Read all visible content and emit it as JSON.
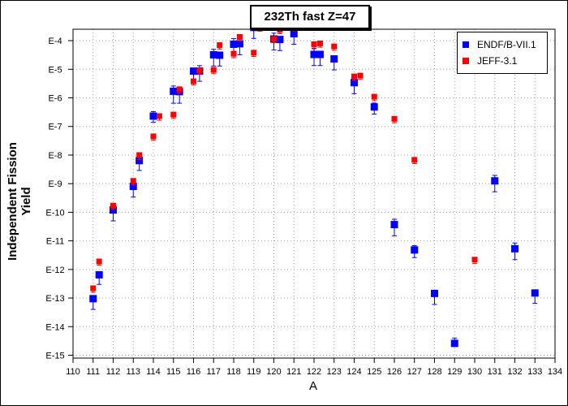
{
  "chart_data": {
    "type": "scatter",
    "title": "232Th fast Z=47",
    "xlabel": "A",
    "ylabel": "Independent Fission Yield",
    "xlim": [
      110,
      134
    ],
    "ylim_exponent": [
      -15.1,
      -3.6
    ],
    "yscale": "log",
    "x_ticks": [
      110,
      111,
      112,
      113,
      114,
      115,
      116,
      117,
      118,
      119,
      120,
      121,
      122,
      123,
      124,
      125,
      126,
      127,
      128,
      129,
      130,
      131,
      132,
      133,
      134
    ],
    "y_tick_labels": [
      "E-4",
      "E-5",
      "E-6",
      "E-7",
      "E-8",
      "E-9",
      "E-10",
      "E-11",
      "E-12",
      "E-13",
      "E-14",
      "E-15"
    ],
    "y_tick_exponents": [
      -4,
      -5,
      -6,
      -7,
      -8,
      -9,
      -10,
      -11,
      -12,
      -13,
      -14,
      -15
    ],
    "grid": true,
    "legend_position": "top-right",
    "series": [
      {
        "name": "ENDF/B-VII.1",
        "color": "#0000ff",
        "marker": "square",
        "points": [
          {
            "x": 111,
            "y": 9.5e-14,
            "err_lo": 5.5e-14,
            "err_hi": 0
          },
          {
            "x": 111.3,
            "y": 6.5e-13,
            "err_lo": 3.5e-13,
            "err_hi": 0
          },
          {
            "x": 112,
            "y": 1.2e-10,
            "err_lo": 7e-11,
            "err_hi": 0
          },
          {
            "x": 113,
            "y": 8e-10,
            "err_lo": 4.6e-10,
            "err_hi": 0
          },
          {
            "x": 113.3,
            "y": 6.4e-09,
            "err_lo": 3.5e-09,
            "err_hi": 0
          },
          {
            "x": 114,
            "y": 2.3e-07,
            "err_lo": 9e-08,
            "err_hi": 1e-07
          },
          {
            "x": 115,
            "y": 1.7e-06,
            "err_lo": 1.05e-06,
            "err_hi": 9e-07
          },
          {
            "x": 115.3,
            "y": 1.65e-06,
            "err_lo": 1e-06,
            "err_hi": 0
          },
          {
            "x": 116,
            "y": 8.6e-06,
            "err_lo": 5e-06,
            "err_hi": 0.0
          },
          {
            "x": 116.3,
            "y": 8.6e-06,
            "err_lo": 4.8e-06,
            "err_hi": 4.8e-06
          },
          {
            "x": 117,
            "y": 3.2e-05,
            "err_lo": 1.9e-05,
            "err_hi": 1.8e-05
          },
          {
            "x": 117.3,
            "y": 3.1e-05,
            "err_lo": 1.8e-05,
            "err_hi": 0
          },
          {
            "x": 118,
            "y": 7.5e-05,
            "err_lo": 4.5e-05,
            "err_hi": 4.3e-05
          },
          {
            "x": 118.3,
            "y": 7.8e-05,
            "err_lo": 4.6e-05,
            "err_hi": 0
          },
          {
            "x": 119,
            "y": 0.00029,
            "err_lo": 0.00017,
            "err_hi": 0.00017
          },
          {
            "x": 120,
            "y": 0.000115,
            "err_lo": 6.8e-05,
            "err_hi": 6.8e-05
          },
          {
            "x": 120.3,
            "y": 0.00011,
            "err_lo": 6.5e-05,
            "err_hi": 0
          },
          {
            "x": 121,
            "y": 0.000175,
            "err_lo": 0.0001,
            "err_hi": 0.0001
          },
          {
            "x": 122,
            "y": 3.3e-05,
            "err_lo": 1.95e-05,
            "err_hi": 1.95e-05
          },
          {
            "x": 122.3,
            "y": 3.3e-05,
            "err_lo": 1.95e-05,
            "err_hi": 0
          },
          {
            "x": 123,
            "y": 2.3e-05,
            "err_lo": 1.35e-05,
            "err_hi": 0
          },
          {
            "x": 124,
            "y": 3.4e-06,
            "err_lo": 2e-06,
            "err_hi": 0
          },
          {
            "x": 125,
            "y": 4.8e-07,
            "err_lo": 2.1e-07,
            "err_hi": 1.8e-07
          },
          {
            "x": 126,
            "y": 3.7e-11,
            "err_lo": 2.2e-11,
            "err_hi": 2e-11
          },
          {
            "x": 127,
            "y": 4.8e-12,
            "err_lo": 2.2e-12,
            "err_hi": 2e-12
          },
          {
            "x": 128,
            "y": 1.45e-13,
            "err_lo": 8.5e-14,
            "err_hi": 0
          },
          {
            "x": 129,
            "y": 2.6e-15,
            "err_lo": 0,
            "err_hi": 1.4e-15
          },
          {
            "x": 131,
            "y": 1.25e-09,
            "err_lo": 7.3e-10,
            "err_hi": 7e-10
          },
          {
            "x": 132,
            "y": 5.3e-12,
            "err_lo": 3.1e-12,
            "err_hi": 3.1e-12
          },
          {
            "x": 133,
            "y": 1.5e-13,
            "err_lo": 8.5e-14,
            "err_hi": 0
          }
        ]
      },
      {
        "name": "JEFF-3.1",
        "color": "#ff0000",
        "marker": "square",
        "points": [
          {
            "x": 111,
            "y": 2.2e-13,
            "err_lo": 6e-14,
            "err_hi": 0
          },
          {
            "x": 111.3,
            "y": 1.9e-12,
            "err_lo": 5e-13,
            "err_hi": 0
          },
          {
            "x": 112,
            "y": 1.7e-10,
            "err_lo": 4.5e-11,
            "err_hi": 0
          },
          {
            "x": 113,
            "y": 1.25e-09,
            "err_lo": 3.5e-10,
            "err_hi": 0
          },
          {
            "x": 113.3,
            "y": 1e-08,
            "err_lo": 3e-09,
            "err_hi": 0
          },
          {
            "x": 114,
            "y": 4.5e-08,
            "err_lo": 1.2e-08,
            "err_hi": 0
          },
          {
            "x": 114.3,
            "y": 2.3e-07,
            "err_lo": 6.5e-08,
            "err_hi": 0
          },
          {
            "x": 115,
            "y": 2.6e-07,
            "err_lo": 7e-08,
            "err_hi": 0
          },
          {
            "x": 115.3,
            "y": 2e-06,
            "err_lo": 5.5e-07,
            "err_hi": 0
          },
          {
            "x": 116,
            "y": 3.8e-06,
            "err_lo": 1e-06,
            "err_hi": 0
          },
          {
            "x": 116.3,
            "y": 9e-06,
            "err_lo": 2.4e-06,
            "err_hi": 0
          },
          {
            "x": 117,
            "y": 9.5e-06,
            "err_lo": 2.5e-06,
            "err_hi": 0
          },
          {
            "x": 117.3,
            "y": 7e-05,
            "err_lo": 1.9e-05,
            "err_hi": 0
          },
          {
            "x": 118,
            "y": 3.5e-05,
            "err_lo": 9.5e-06,
            "err_hi": 0
          },
          {
            "x": 118.3,
            "y": 0.000135,
            "err_lo": 3.5e-05,
            "err_hi": 0
          },
          {
            "x": 119,
            "y": 3.8e-05,
            "err_lo": 1e-05,
            "err_hi": 0
          },
          {
            "x": 119.3,
            "y": 0.000295,
            "err_lo": 8e-05,
            "err_hi": 0
          },
          {
            "x": 120,
            "y": 0.000115,
            "err_lo": 3e-05,
            "err_hi": 0
          },
          {
            "x": 120.3,
            "y": 0.00024,
            "err_lo": 6.5e-05,
            "err_hi": 0
          },
          {
            "x": 121,
            "y": 0.0003,
            "err_lo": 8e-05,
            "err_hi": 0
          },
          {
            "x": 122,
            "y": 7.5e-05,
            "err_lo": 2e-05,
            "err_hi": 0
          },
          {
            "x": 122.3,
            "y": 8e-05,
            "err_lo": 2.1e-05,
            "err_hi": 0
          },
          {
            "x": 123,
            "y": 6.3e-05,
            "err_lo": 1.7e-05,
            "err_hi": 0
          },
          {
            "x": 124,
            "y": 5.6e-06,
            "err_lo": 1.5e-06,
            "err_hi": 0
          },
          {
            "x": 124.3,
            "y": 6e-06,
            "err_lo": 1.6e-06,
            "err_hi": 0
          },
          {
            "x": 125,
            "y": 1.1e-06,
            "err_lo": 3e-07,
            "err_hi": 0
          },
          {
            "x": 126,
            "y": 1.85e-07,
            "err_lo": 5e-08,
            "err_hi": 0
          },
          {
            "x": 127,
            "y": 6.8e-09,
            "err_lo": 1.8e-09,
            "err_hi": 0
          },
          {
            "x": 130,
            "y": 2.2e-12,
            "err_lo": 6e-13,
            "err_hi": 0
          }
        ]
      }
    ]
  }
}
